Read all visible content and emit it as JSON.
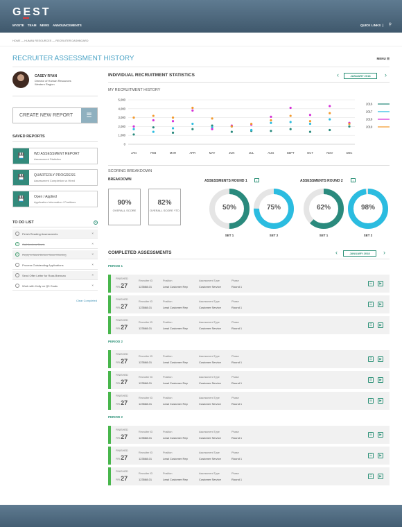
{
  "app": {
    "logo": "GEST",
    "nav": [
      "MYSITE",
      "TEAM",
      "NEWS",
      "ANNOUNCEMENTS"
    ],
    "quick_links": "QUICK LINKS"
  },
  "breadcrumb": "HOME  —  HUMAN RESOURCES  —  RECRUITER DASHBOARD",
  "page_title": "RECRUITER ASSESSMENT HISTORY",
  "menu_label": "MENU",
  "user": {
    "name": "CASEY RYAN",
    "role": "Director of Human Resources",
    "region": "Western Region"
  },
  "create_report_label": "CREATE NEW REPORT",
  "saved_reports": {
    "title": "SAVED REPORTS",
    "items": [
      {
        "title": "WD ASSESSMENT REPORT",
        "subtitle": "Assessment Statistics"
      },
      {
        "title": "QUARTERLY PROGRESS",
        "subtitle": "Assessment Completion vs Hired"
      },
      {
        "title": "Open / Applied",
        "subtitle": "Application Information / Positions"
      }
    ]
  },
  "todo": {
    "title": "TO DO LIST",
    "items": [
      {
        "text": "Finish Reading Assessments",
        "done": false
      },
      {
        "text": "Call Andrew Davis",
        "done": true
      },
      {
        "text": "Reply to Mark Before Noon Meeting",
        "done": true
      },
      {
        "text": "Process Outstanding Applications",
        "done": false
      },
      {
        "text": "Send Offer Letter for Russ Brennan",
        "done": false
      },
      {
        "text": "Work with Holly on Q3 Goals",
        "done": false
      }
    ],
    "clear_label": "Clear Completed"
  },
  "stats": {
    "title": "INDIVIDUAL RECRUITMENT STATISTICS",
    "month": "JANUARY 2018",
    "chart_title": "MY RECRUITMENT HISTORY"
  },
  "chart_data": {
    "type": "scatter",
    "x": [
      "JAN",
      "FEB",
      "MAR",
      "APR",
      "MAY",
      "JUN",
      "JUL",
      "AUG",
      "SEPT",
      "OCT",
      "NOV",
      "DEC"
    ],
    "ylim": [
      0,
      5000
    ],
    "yticks": [
      "0",
      "1,000",
      "2,000",
      "3,000",
      "4,000",
      "5,000"
    ],
    "grid": true,
    "legend": "right",
    "series": [
      {
        "name": "2016",
        "color": "#2a8a7d",
        "values": [
          1100,
          1900,
          1300,
          1700,
          2100,
          1400,
          1500,
          1500,
          1700,
          1400,
          1600,
          2000
        ]
      },
      {
        "name": "2017",
        "color": "#2bbce0",
        "values": [
          1700,
          1400,
          1800,
          2300,
          1900,
          2000,
          1600,
          2400,
          2500,
          2300,
          2800,
          2300
        ]
      },
      {
        "name": "2018",
        "color": "#d531d8",
        "values": [
          2000,
          2700,
          2600,
          3800,
          1700,
          2100,
          2200,
          3100,
          4100,
          3300,
          4300,
          2400
        ]
      },
      {
        "name": "2019",
        "color": "#f39a2e",
        "values": [
          3000,
          3200,
          3000,
          4100,
          2900,
          2000,
          2300,
          2700,
          3200,
          2600,
          3500,
          2300
        ]
      }
    ]
  },
  "scoring": {
    "title": "SCORING BREAKDOWN",
    "subtitle": "BREAKDOWN",
    "cards": [
      {
        "value": "90%",
        "label": "OVERALL SCORE"
      },
      {
        "value": "82%",
        "label": "OVERALL SCORE YTD"
      }
    ]
  },
  "rounds": [
    {
      "title": "ASSESSMENTS ROUND 1",
      "sets": [
        {
          "value": "50%",
          "fraction": 0.5,
          "color": "#2a8a7d",
          "label": "SET 1"
        },
        {
          "value": "75%",
          "fraction": 0.75,
          "color": "#2bbce0",
          "label": "SET 2"
        }
      ]
    },
    {
      "title": "ASSESSMENTS ROUND 2",
      "sets": [
        {
          "value": "62%",
          "fraction": 0.62,
          "color": "#2a8a7d",
          "label": "SET 1"
        },
        {
          "value": "98%",
          "fraction": 0.98,
          "color": "#2bbce0",
          "label": "SET 2"
        }
      ]
    }
  ],
  "completed": {
    "title": "COMPLETED ASSESSMENTS",
    "month": "JANUARY 2018",
    "headers": {
      "recruiter": "Recruiter ID",
      "position": "Position",
      "type": "Assessment Type",
      "phase": "Phase"
    },
    "row_values": {
      "status": "FINISHED",
      "day": "FRI",
      "date": "27",
      "recruiter": "123568-01",
      "position": "Lead Customer Rep",
      "type": "Customer Service",
      "phase": "Round 1"
    },
    "periods": [
      {
        "label": "PERIOD 1"
      },
      {
        "label": "PERIOD 2"
      },
      {
        "label": "PERIOD 2"
      }
    ]
  }
}
